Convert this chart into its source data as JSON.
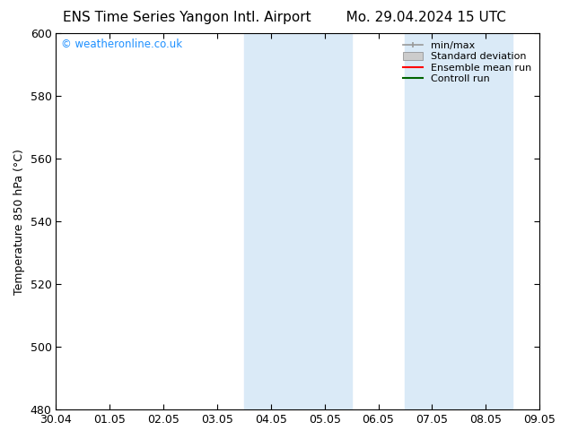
{
  "title_left": "ENS Time Series Yangon Intl. Airport",
  "title_right": "Mo. 29.04.2024 15 UTC",
  "ylabel": "Temperature 850 hPa (°C)",
  "xlim_dates": [
    "30.04",
    "01.05",
    "02.05",
    "03.05",
    "04.05",
    "05.05",
    "06.05",
    "07.05",
    "08.05",
    "09.05"
  ],
  "xlim": [
    0,
    9
  ],
  "ylim": [
    480,
    600
  ],
  "yticks": [
    480,
    500,
    520,
    540,
    560,
    580,
    600
  ],
  "xticks": [
    0,
    1,
    2,
    3,
    4,
    5,
    6,
    7,
    8,
    9
  ],
  "shaded_regions": [
    {
      "x_start": 3.5,
      "x_end": 4.5
    },
    {
      "x_start": 4.5,
      "x_end": 5.5
    },
    {
      "x_start": 6.5,
      "x_end": 7.5
    },
    {
      "x_start": 7.5,
      "x_end": 8.5
    }
  ],
  "shaded_color": "#daeaf7",
  "watermark_text": "© weatheronline.co.uk",
  "watermark_color": "#1e90ff",
  "legend_entries": [
    {
      "label": "min/max",
      "color": "#999999",
      "lw": 1.2,
      "style": "minmax"
    },
    {
      "label": "Standard deviation",
      "color": "#cccccc",
      "lw": 6,
      "style": "band"
    },
    {
      "label": "Ensemble mean run",
      "color": "#ff0000",
      "lw": 1.5,
      "style": "line"
    },
    {
      "label": "Controll run",
      "color": "#006400",
      "lw": 1.5,
      "style": "line"
    }
  ],
  "background_color": "#ffffff",
  "font_family": "DejaVu Sans",
  "title_fontsize": 11,
  "tick_fontsize": 9,
  "label_fontsize": 9,
  "legend_fontsize": 8
}
